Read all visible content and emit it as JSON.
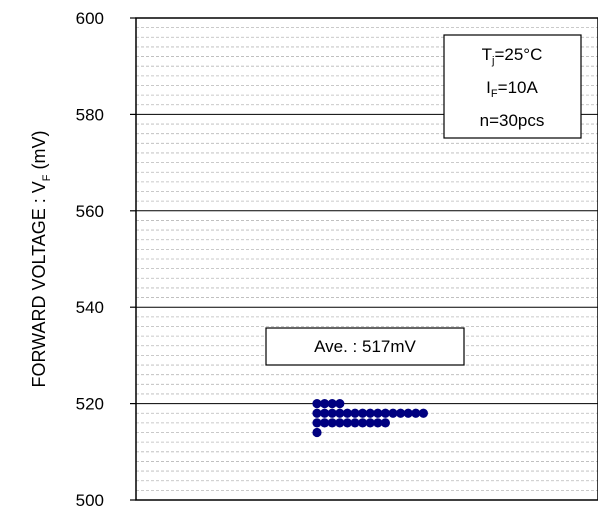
{
  "chart_data": {
    "type": "scatter",
    "ylabel": "FORWARD VOLTAGE : V",
    "ylabel_sub": "F",
    "ylabel_unit": " (mV)",
    "ylim": [
      500,
      600
    ],
    "yticks": [
      500,
      520,
      540,
      560,
      580,
      600
    ],
    "ytick_labels": [
      "500",
      "520",
      "540",
      "560",
      "580",
      "600"
    ],
    "grid": {
      "major_step": 20,
      "minor_step": 2
    },
    "marker_color": "#000080",
    "conditions": {
      "line1": {
        "main": "T",
        "sub": "j",
        "rest": "=25°C"
      },
      "line2": {
        "main": "I",
        "sub": "F",
        "rest": "=10A"
      },
      "line3": {
        "main": "n=30pcs"
      }
    },
    "average_label": "Ave. : 517mV",
    "points": [
      {
        "value": 520,
        "count": 4
      },
      {
        "value": 518,
        "count": 15
      },
      {
        "value": 516,
        "count": 10
      },
      {
        "value": 514,
        "count": 1
      }
    ]
  }
}
